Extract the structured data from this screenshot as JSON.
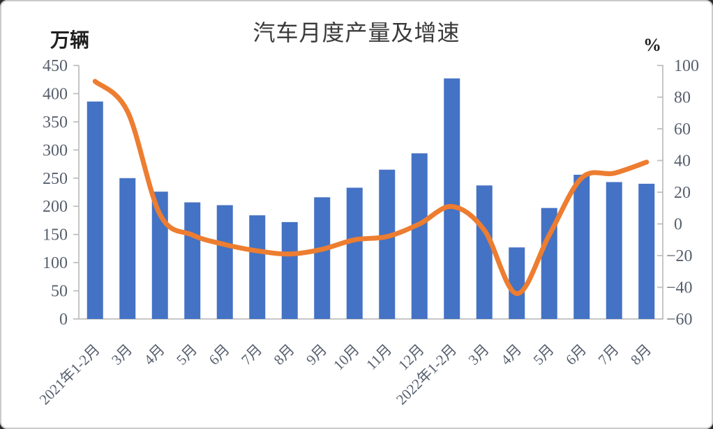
{
  "chart_data": {
    "type": "bar+line",
    "title": "汽车月度产量及增速",
    "categories": [
      "2021年1-2月",
      "3月",
      "4月",
      "5月",
      "6月",
      "7月",
      "8月",
      "9月",
      "10月",
      "11月",
      "12月",
      "2022年1-2月",
      "3月",
      "4月",
      "5月",
      "6月",
      "7月",
      "8月"
    ],
    "series": [
      {
        "name": "月度产量",
        "type": "bar",
        "axis": "left",
        "color": "#4472C4",
        "values": [
          386,
          250,
          226,
          207,
          202,
          184,
          172,
          216,
          233,
          265,
          294,
          427,
          237,
          127,
          197,
          256,
          243,
          240
        ]
      },
      {
        "name": "增速",
        "type": "line",
        "axis": "right",
        "color": "#ED7D31",
        "values": [
          90,
          71,
          6,
          -7,
          -13,
          -17,
          -19,
          -16,
          -10,
          -8,
          0,
          11,
          -4,
          -44,
          -7,
          29,
          32,
          39
        ]
      }
    ],
    "left_axis": {
      "title": "万辆",
      "min": 0,
      "max": 450,
      "step": 50,
      "tick_labels": [
        "450",
        "400",
        "350",
        "300",
        "250",
        "200",
        "150",
        "100",
        "50",
        "0"
      ]
    },
    "right_axis": {
      "title": "%",
      "min": -60,
      "max": 100,
      "step": 20,
      "tick_labels": [
        "100",
        "80",
        "60",
        "40",
        "20",
        "0",
        "−20",
        "−40",
        "−60"
      ]
    },
    "grid": false,
    "legend_position": "none",
    "x_label_rotation_deg": 45,
    "colors": {
      "axis_line": "#BFBFBF",
      "tick_text": "#565F6D",
      "title_text": "#3A3A3A",
      "axis_title_text": "#1F1F1F"
    }
  }
}
